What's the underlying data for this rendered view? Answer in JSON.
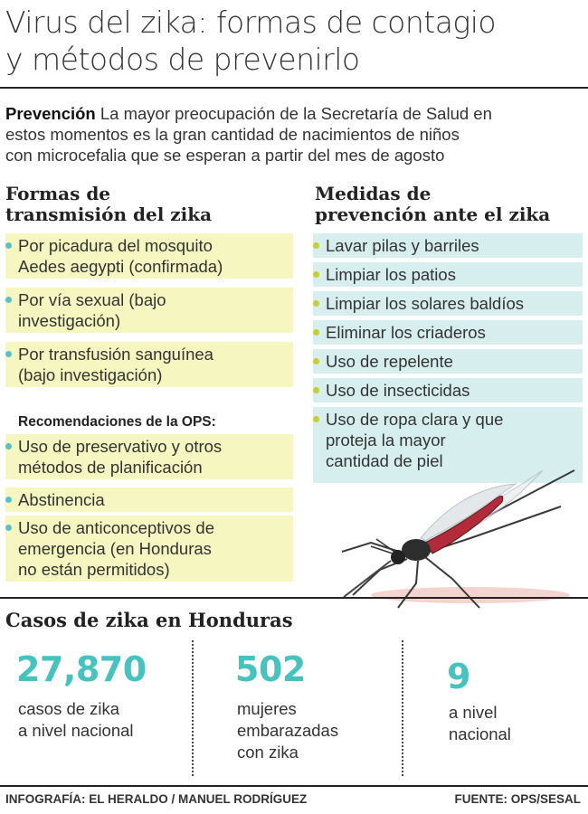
{
  "title": {
    "line1": "Virus del zika: formas de contagio",
    "line2": "y métodos de prevenirlo"
  },
  "intro": {
    "label": "Prevención",
    "line1": " La mayor preocupación de la Secretaría de Salud en",
    "line2": "estos momentos es la gran cantidad de nacimientos de niños",
    "line3": "con microcefalia que se esperan a partir del mes de agosto"
  },
  "transmission": {
    "heading1": "Formas de",
    "heading2": "transmisión del zika",
    "items": [
      {
        "l1": "Por picadura del mosquito",
        "l2": "Aedes aegypti (confirmada)"
      },
      {
        "l1": "Por vía sexual (bajo",
        "l2": "investigación)"
      },
      {
        "l1": "Por transfusión sanguínea",
        "l2": "(bajo investigación)"
      }
    ]
  },
  "ops": {
    "heading": "Recomendaciones de la OPS:",
    "items": [
      {
        "l1": "Uso de preservativo y otros",
        "l2": "métodos de planificación"
      },
      {
        "l1": "Abstinencia"
      },
      {
        "l1": "Uso de anticonceptivos de",
        "l2": "emergencia (en Honduras",
        "l3": "no están permitidos)"
      }
    ]
  },
  "prevention": {
    "heading1": "Medidas de",
    "heading2": "prevención ante el zika",
    "items": [
      {
        "l1": "Lavar pilas y barriles"
      },
      {
        "l1": "Limpiar los patios"
      },
      {
        "l1": "Limpiar los solares baldíos"
      },
      {
        "l1": "Eliminar los criaderos"
      },
      {
        "l1": "Uso de repelente"
      },
      {
        "l1": "Uso de insecticidas"
      },
      {
        "l1": "Uso de ropa clara y que",
        "l2": "proteja la mayor",
        "l3": "cantidad de piel"
      }
    ]
  },
  "stats": {
    "title": "Casos de zika en Honduras",
    "items": [
      {
        "value": "27,870",
        "l1": "casos de zika",
        "l2": "a nivel nacional"
      },
      {
        "value": "502",
        "l1": "mujeres",
        "l2": "embarazadas",
        "l3": "con zika"
      },
      {
        "value": "9",
        "l1": "a nivel",
        "l2": "nacional"
      }
    ]
  },
  "footer": {
    "credit": "INFOGRAFÍA: EL HERALDO / MANUEL RODRÍGUEZ",
    "source": "FUENTE:  OPS/SESAL"
  },
  "colors": {
    "left_bg": "#f6f6c0",
    "right_bg": "#d7eeef",
    "left_bullet": "#58c2c8",
    "right_bullet": "#c8cf2a",
    "stat_number": "#47c3bf"
  },
  "illustration": "mosquito-icon"
}
